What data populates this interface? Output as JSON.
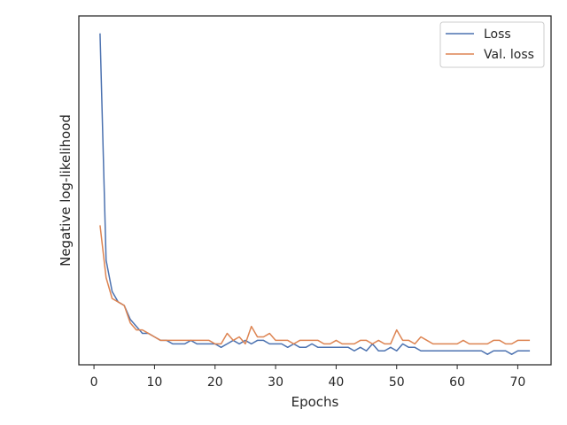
{
  "chart_data": {
    "type": "line",
    "xlabel": "Epochs",
    "ylabel": "Negative log-likelihood",
    "xlim": [
      -2.5,
      75.5
    ],
    "ylim": [
      0.0,
      1.0
    ],
    "xticks": [
      0,
      10,
      20,
      30,
      40,
      50,
      60,
      70
    ],
    "yticks_visible": false,
    "grid": false,
    "legend_position": "top-right",
    "x": [
      1,
      2,
      3,
      4,
      5,
      6,
      7,
      8,
      9,
      10,
      11,
      12,
      13,
      14,
      15,
      16,
      17,
      18,
      19,
      20,
      21,
      22,
      23,
      24,
      25,
      26,
      27,
      28,
      29,
      30,
      31,
      32,
      33,
      34,
      35,
      36,
      37,
      38,
      39,
      40,
      41,
      42,
      43,
      44,
      45,
      46,
      47,
      48,
      49,
      50,
      51,
      52,
      53,
      54,
      55,
      56,
      57,
      58,
      59,
      60,
      61,
      62,
      63,
      64,
      65,
      66,
      67,
      68,
      69,
      70,
      71,
      72
    ],
    "series": [
      {
        "name": "Loss",
        "color": "#4c72b0",
        "values": [
          0.95,
          0.3,
          0.21,
          0.18,
          0.17,
          0.13,
          0.11,
          0.09,
          0.09,
          0.08,
          0.07,
          0.07,
          0.06,
          0.06,
          0.06,
          0.07,
          0.06,
          0.06,
          0.06,
          0.06,
          0.05,
          0.06,
          0.07,
          0.06,
          0.07,
          0.06,
          0.07,
          0.07,
          0.06,
          0.06,
          0.06,
          0.05,
          0.06,
          0.05,
          0.05,
          0.06,
          0.05,
          0.05,
          0.05,
          0.05,
          0.05,
          0.05,
          0.04,
          0.05,
          0.04,
          0.06,
          0.04,
          0.04,
          0.05,
          0.04,
          0.06,
          0.05,
          0.05,
          0.04,
          0.04,
          0.04,
          0.04,
          0.04,
          0.04,
          0.04,
          0.04,
          0.04,
          0.04,
          0.04,
          0.03,
          0.04,
          0.04,
          0.04,
          0.03,
          0.04,
          0.04,
          0.04
        ]
      },
      {
        "name": "Val. loss",
        "color": "#dd8452",
        "values": [
          0.4,
          0.25,
          0.19,
          0.18,
          0.17,
          0.12,
          0.1,
          0.1,
          0.09,
          0.08,
          0.07,
          0.07,
          0.07,
          0.07,
          0.07,
          0.07,
          0.07,
          0.07,
          0.07,
          0.06,
          0.06,
          0.09,
          0.07,
          0.08,
          0.06,
          0.11,
          0.08,
          0.08,
          0.09,
          0.07,
          0.07,
          0.07,
          0.06,
          0.07,
          0.07,
          0.07,
          0.07,
          0.06,
          0.06,
          0.07,
          0.06,
          0.06,
          0.06,
          0.07,
          0.07,
          0.06,
          0.07,
          0.06,
          0.06,
          0.1,
          0.07,
          0.07,
          0.06,
          0.08,
          0.07,
          0.06,
          0.06,
          0.06,
          0.06,
          0.06,
          0.07,
          0.06,
          0.06,
          0.06,
          0.06,
          0.07,
          0.07,
          0.06,
          0.06,
          0.07,
          0.07,
          0.07
        ]
      }
    ]
  }
}
